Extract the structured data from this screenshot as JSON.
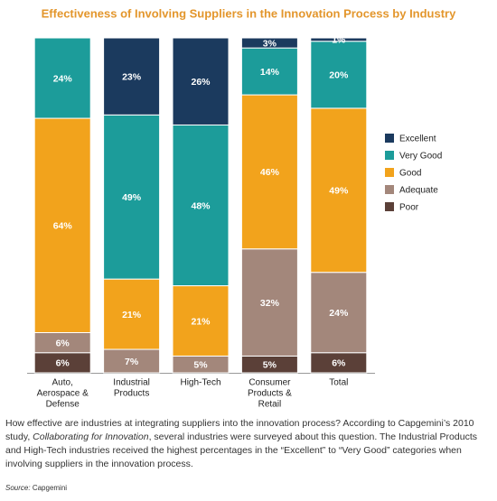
{
  "chart_data": {
    "type": "stacked-bar",
    "title": "Effectiveness of Involving Suppliers in the Innovation Process by Industry",
    "categories": [
      [
        "Auto,",
        "Aerospace &",
        "Defense"
      ],
      [
        "Industrial",
        "Products"
      ],
      [
        "High-Tech"
      ],
      [
        "Consumer",
        "Products &",
        "Retail"
      ],
      [
        "Total"
      ]
    ],
    "series": [
      {
        "name": "Poor",
        "color": "#5b4038",
        "values": [
          6,
          null,
          null,
          5,
          6
        ],
        "value_labels": [
          "6%",
          null,
          null,
          "5%",
          "6%"
        ]
      },
      {
        "name": "Adequate",
        "color": "#a3877b",
        "values": [
          6,
          7,
          5,
          32,
          24
        ],
        "value_labels": [
          "6%",
          "7%",
          "5%",
          "32%",
          "24%"
        ]
      },
      {
        "name": "Good",
        "color": "#f2a31c",
        "values": [
          64,
          21,
          21,
          46,
          49
        ],
        "value_labels": [
          "64%",
          "21%",
          "21%",
          "46%",
          "49%"
        ]
      },
      {
        "name": "Very Good",
        "color": "#1c9c9a",
        "values": [
          24,
          49,
          48,
          14,
          20
        ],
        "value_labels": [
          "24%",
          "49%",
          "48%",
          "14%",
          "20%"
        ]
      },
      {
        "name": "Excellent",
        "color": "#1b3a5e",
        "values": [
          null,
          23,
          26,
          3,
          1
        ],
        "value_labels": [
          null,
          "23%",
          "26%",
          "3%",
          "1%"
        ]
      }
    ],
    "ylim": [
      0,
      100
    ],
    "legend": "right"
  },
  "caption": {
    "before": "How effective are industries at integrating suppliers into the innovation process? According to Capgemini’s 2010 study, ",
    "italic": "Collaborating for Innovation",
    "after": ", several industries were surveyed about this question. The Industrial Products and High-Tech industries received the highest percentages in the “Excellent” to “Very Good” categories when involving suppliers in the innovation process."
  },
  "source": {
    "label": "Source:",
    "text": "Capgemini"
  }
}
